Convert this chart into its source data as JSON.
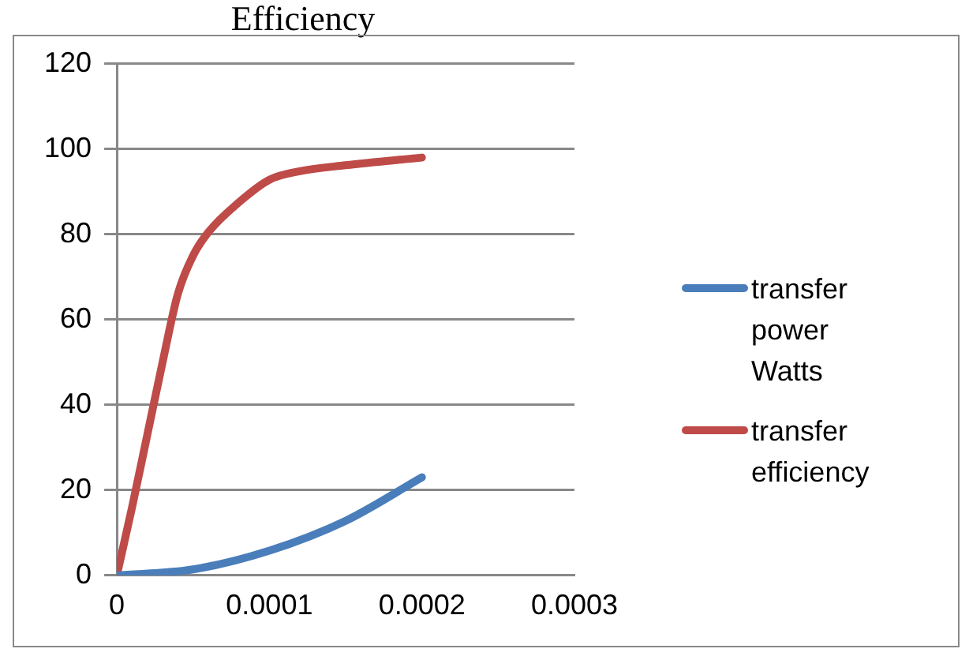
{
  "chart_data": {
    "type": "line",
    "title": "Efficiency",
    "xlim": [
      0,
      0.0003
    ],
    "xticks": [
      0,
      0.0001,
      0.0002,
      0.0003
    ],
    "ylim": [
      0,
      120
    ],
    "yticks": [
      0,
      20,
      40,
      60,
      80,
      100,
      120
    ],
    "grid": "y",
    "legend": "right",
    "marker": "none",
    "line_style": "solid",
    "series": [
      {
        "name": "transfer power Watts",
        "color": "#4a7ebb",
        "x": [
          0,
          5e-05,
          0.0001,
          0.00015,
          0.0002
        ],
        "values": [
          0,
          1.4,
          5.8,
          12.8,
          23
        ]
      },
      {
        "name": "transfer efficiency",
        "color": "#be4b48",
        "x": [
          0,
          1e-05,
          2e-05,
          3e-05,
          4e-05,
          5e-05,
          6e-05,
          8e-05,
          0.0001,
          0.00012,
          0.00015,
          0.0002
        ],
        "values": [
          0,
          16,
          33,
          50,
          66,
          75,
          80.5,
          87.5,
          92.8,
          94.8,
          96.2,
          98
        ]
      }
    ]
  }
}
